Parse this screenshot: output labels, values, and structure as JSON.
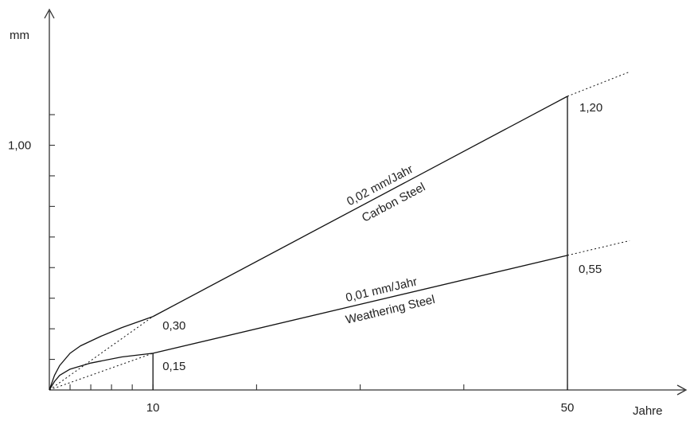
{
  "chart_data": {
    "type": "line",
    "xlabel": "Jahre",
    "ylabel": "mm",
    "xlim": [
      0,
      60
    ],
    "ylim": [
      0,
      1.2
    ],
    "x_ticks_minor": [
      2,
      4,
      6,
      8,
      10,
      20,
      30,
      40,
      50
    ],
    "x_tick_labels": [
      {
        "x": 10,
        "label": "10"
      },
      {
        "x": 50,
        "label": "50"
      }
    ],
    "y_ticks": [
      0.125,
      0.25,
      0.375,
      0.5,
      0.625,
      0.75,
      0.875,
      1.0,
      1.125
    ],
    "y_tick_labels": [
      {
        "y": 1.0,
        "label": "1,00"
      }
    ],
    "grid": false,
    "colors": {
      "line": "#111111",
      "axis": "#333333"
    },
    "series": [
      {
        "key": "carbon",
        "line_labels": [
          "0,02 mm/Jahr",
          "Carbon Steel"
        ],
        "curve": [
          [
            0,
            0
          ],
          [
            0.5,
            0.06
          ],
          [
            1,
            0.1
          ],
          [
            2,
            0.15
          ],
          [
            3,
            0.18
          ],
          [
            5,
            0.22
          ],
          [
            7,
            0.255
          ],
          [
            10,
            0.3
          ]
        ],
        "linear": [
          [
            10,
            0.3
          ],
          [
            50,
            1.2
          ]
        ],
        "extension": [
          [
            50,
            1.2
          ],
          [
            56,
            1.3
          ]
        ],
        "dotted_start": [
          [
            0,
            0
          ],
          [
            10,
            0.3
          ]
        ],
        "marker_x": 50,
        "values": [
          {
            "x": 10,
            "y": 0.3,
            "label": "0,30"
          },
          {
            "x": 50,
            "y": 1.2,
            "label": "1,20"
          }
        ]
      },
      {
        "key": "weathering",
        "line_labels": [
          "0,01 mm/Jahr",
          "Weathering Steel"
        ],
        "curve": [
          [
            0,
            0
          ],
          [
            0.5,
            0.035
          ],
          [
            1,
            0.06
          ],
          [
            2,
            0.085
          ],
          [
            4,
            0.11
          ],
          [
            7,
            0.135
          ],
          [
            10,
            0.15
          ]
        ],
        "linear": [
          [
            10,
            0.15
          ],
          [
            50,
            0.55
          ]
        ],
        "extension": [
          [
            50,
            0.55
          ],
          [
            56,
            0.61
          ]
        ],
        "dotted_start": [
          [
            0,
            0
          ],
          [
            10,
            0.15
          ]
        ],
        "marker_x": 10,
        "values": [
          {
            "x": 10,
            "y": 0.15,
            "label": "0,15"
          },
          {
            "x": 50,
            "y": 0.55,
            "label": "0,55"
          }
        ]
      }
    ]
  }
}
